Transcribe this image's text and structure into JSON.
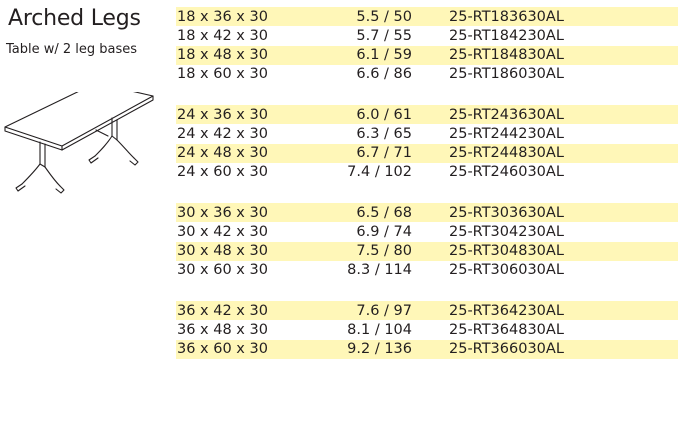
{
  "header": {
    "title": "Arched Legs",
    "subtitle": "Table w/ 2 leg bases"
  },
  "illustration": {
    "icon": "arched-leg-table-icon"
  },
  "colors": {
    "highlight": "#fff7b8",
    "text": "#231f20"
  },
  "groups": [
    {
      "rows": [
        {
          "size": "18 x 36 x 30",
          "weight": "5.5 / 50",
          "model": "25-RT183630AL",
          "highlight": true
        },
        {
          "size": "18 x 42 x 30",
          "weight": "5.7 / 55",
          "model": "25-RT184230AL",
          "highlight": false
        },
        {
          "size": "18 x 48 x 30",
          "weight": "6.1 / 59",
          "model": "25-RT184830AL",
          "highlight": true
        },
        {
          "size": "18 x 60 x 30",
          "weight": "6.6 / 86",
          "model": "25-RT186030AL",
          "highlight": false
        }
      ]
    },
    {
      "rows": [
        {
          "size": "24 x 36 x 30",
          "weight": "6.0 / 61",
          "model": "25-RT243630AL",
          "highlight": true
        },
        {
          "size": "24 x 42 x 30",
          "weight": "6.3 / 65",
          "model": "25-RT244230AL",
          "highlight": false
        },
        {
          "size": "24 x 48 x 30",
          "weight": "6.7 / 71",
          "model": "25-RT244830AL",
          "highlight": true
        },
        {
          "size": "24 x 60 x 30",
          "weight": "7.4 / 102",
          "model": "25-RT246030AL",
          "highlight": false
        }
      ]
    },
    {
      "rows": [
        {
          "size": "30 x 36 x 30",
          "weight": "6.5 / 68",
          "model": "25-RT303630AL",
          "highlight": true
        },
        {
          "size": "30 x 42 x 30",
          "weight": "6.9 / 74",
          "model": "25-RT304230AL",
          "highlight": false
        },
        {
          "size": "30 x 48 x 30",
          "weight": "7.5 / 80",
          "model": "25-RT304830AL",
          "highlight": true
        },
        {
          "size": "30 x 60 x 30",
          "weight": "8.3 / 114",
          "model": "25-RT306030AL",
          "highlight": false
        }
      ]
    },
    {
      "rows": [
        {
          "size": "36 x 42 x 30",
          "weight": "7.6 / 97",
          "model": "25-RT364230AL",
          "highlight": true
        },
        {
          "size": "36 x 48 x 30",
          "weight": "8.1 / 104",
          "model": "25-RT364830AL",
          "highlight": false
        },
        {
          "size": "36 x 60 x 30",
          "weight": "9.2 / 136",
          "model": "25-RT366030AL",
          "highlight": true
        }
      ]
    }
  ]
}
